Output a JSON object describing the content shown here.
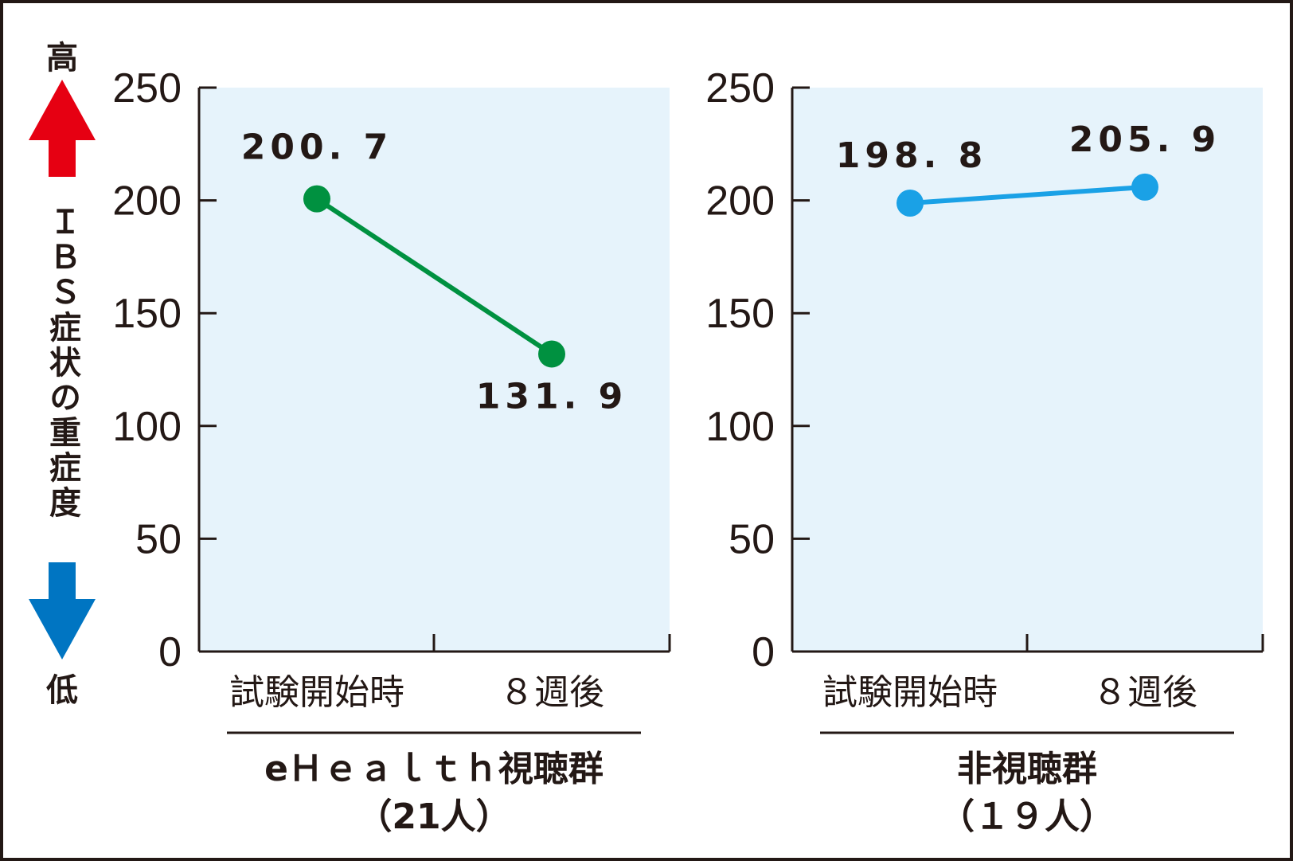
{
  "side_label": {
    "high": "高",
    "low": "低",
    "title": "ＩＢＳ症状の重症度",
    "up_arrow_color": "#e60012",
    "down_arrow_color": "#0075c2"
  },
  "style": {
    "plot_background": "#e6f3fb",
    "axis_color": "#231815"
  },
  "chart_data": [
    {
      "type": "line",
      "categories": [
        "試験開始時",
        "８週後"
      ],
      "series": [
        {
          "values": [
            200.7,
            131.9
          ],
          "color": "#009140"
        }
      ],
      "value_labels": [
        "200. 7",
        "131. 9"
      ],
      "yticks": [
        "0",
        "50",
        "100",
        "150",
        "200",
        "250"
      ],
      "ylim": [
        0,
        250
      ],
      "group_label": "eＨｅａｌｔｈ視聴群",
      "group_count": "（21人）"
    },
    {
      "type": "line",
      "categories": [
        "試験開始時",
        "８週後"
      ],
      "series": [
        {
          "values": [
            198.8,
            205.9
          ],
          "color": "#1aa1e6"
        }
      ],
      "value_labels": [
        "198. 8",
        "205. 9"
      ],
      "yticks": [
        "0",
        "50",
        "100",
        "150",
        "200",
        "250"
      ],
      "ylim": [
        0,
        250
      ],
      "group_label": "非視聴群",
      "group_count": "（１９人）"
    }
  ]
}
